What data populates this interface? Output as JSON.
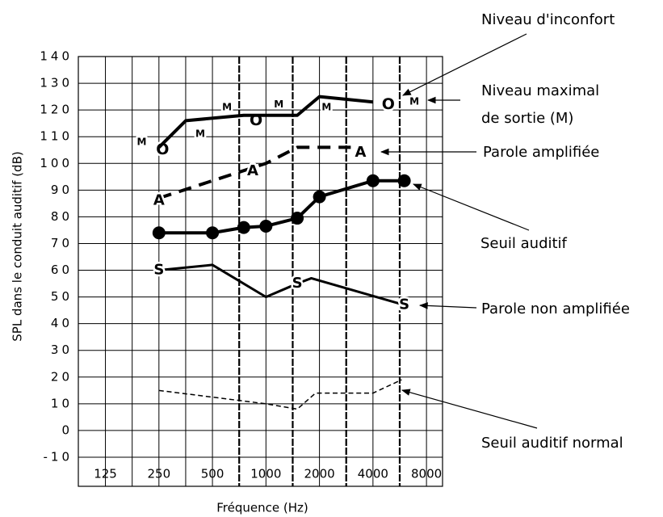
{
  "chart_data": {
    "type": "line",
    "x_label": "Fréquence (Hz)",
    "y_label": "SPL dans le conduit auditif (dB)",
    "log_x": true,
    "xlim": [
      88,
      9850
    ],
    "xticks": [
      125,
      250,
      500,
      1000,
      2000,
      4000,
      8000
    ],
    "ylim": [
      -10,
      140
    ],
    "yticks": [
      -10,
      0,
      10,
      20,
      30,
      40,
      50,
      60,
      70,
      80,
      90,
      100,
      110,
      120,
      130,
      140
    ],
    "grid": true,
    "series": [
      {
        "name": "Niveau d'inconfort",
        "color": "#000000",
        "line": false,
        "marker": "O",
        "marker_size": 19,
        "x": [
          262,
          880,
          4876
        ],
        "values": [
          105,
          116,
          122
        ]
      },
      {
        "name": "Niveau maximal de sortie (M)",
        "color": "#000000",
        "line": true,
        "line_width": 4,
        "dashed": false,
        "marker": "M",
        "marker_size": 12,
        "x": [
          250,
          354,
          750,
          1000,
          1500,
          2000,
          4000
        ],
        "values": [
          106,
          116,
          118,
          118,
          118,
          125,
          123
        ],
        "marker_x": [
          200,
          427,
          604,
          1181,
          2192,
          6840
        ],
        "marker_values": [
          108,
          111,
          121,
          122,
          121,
          123
        ]
      },
      {
        "name": "Parole amplifiée",
        "color": "#000000",
        "line": true,
        "line_width": 4,
        "dashed": true,
        "marker": "A",
        "marker_size": 18,
        "x": [
          250,
          1000,
          1500,
          3000
        ],
        "values": [
          87,
          100,
          106,
          106
        ],
        "marker_x": [
          250,
          843,
          3404
        ],
        "marker_values": [
          86,
          97,
          104
        ]
      },
      {
        "name": "Seuil auditif",
        "color": "#000000",
        "line": true,
        "line_width": 4,
        "dashed": false,
        "marker": "circle",
        "marker_size": 8,
        "x": [
          250,
          500,
          750,
          1000,
          1500,
          2000,
          4000,
          6000
        ],
        "values": [
          74,
          74,
          76,
          76.5,
          79.5,
          87.5,
          93.5,
          93.5
        ]
      },
      {
        "name": "Parole non amplifiée",
        "color": "#000000",
        "line": true,
        "line_width": 3,
        "dashed": false,
        "marker": "S",
        "marker_size": 18,
        "x": [
          250,
          500,
          1000,
          1500,
          1800,
          6000
        ],
        "values": [
          60,
          62,
          50,
          55,
          57,
          47
        ],
        "marker_x": [
          250,
          1500,
          6000
        ],
        "marker_values": [
          60,
          55,
          47
        ]
      },
      {
        "name": "Seuil auditif normal",
        "color": "#000000",
        "line": true,
        "line_width": 1.5,
        "dashed": true,
        "x": [
          250,
          1000,
          1500,
          1900,
          4000,
          5800
        ],
        "values": [
          15,
          10,
          8,
          14,
          14,
          19
        ]
      }
    ]
  }
}
